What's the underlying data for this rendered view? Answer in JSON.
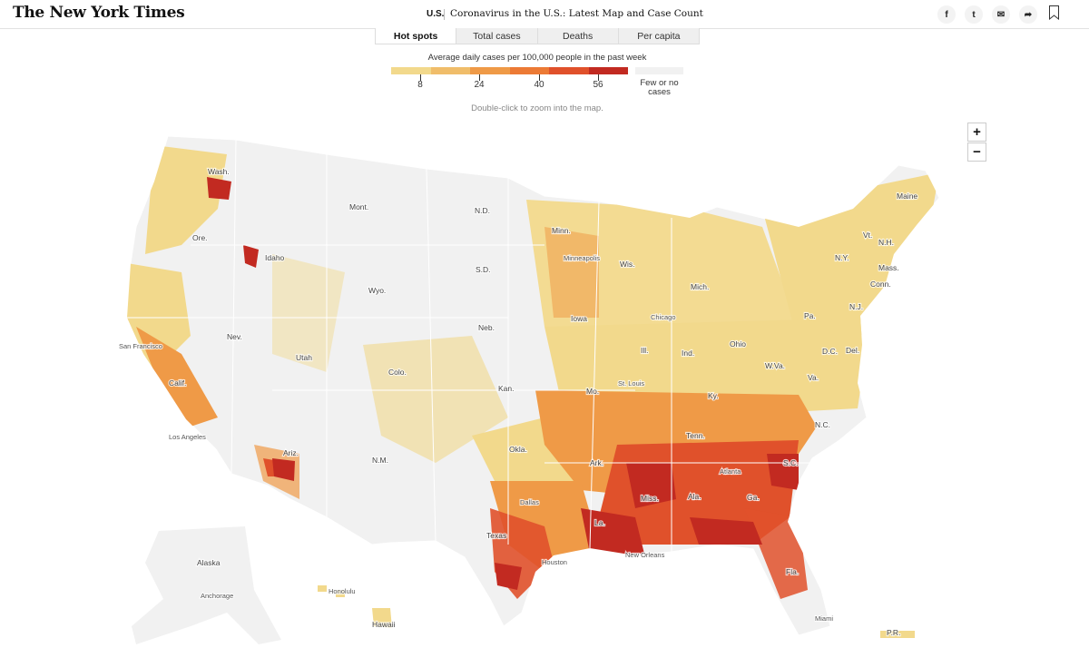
{
  "header": {
    "logo": "The New York Times",
    "section": "U.S.",
    "headline": "Coronavirus in the U.S.: Latest Map and Case Count",
    "share": [
      {
        "name": "facebook-icon",
        "glyph": "f"
      },
      {
        "name": "twitter-icon",
        "glyph": "t"
      },
      {
        "name": "email-icon",
        "glyph": "✉"
      },
      {
        "name": "share-icon",
        "glyph": "➦"
      }
    ]
  },
  "tabs": [
    "Hot spots",
    "Total cases",
    "Deaths",
    "Per capita"
  ],
  "legend": {
    "title": "Average daily cases per 100,000 people in the past week",
    "colors": [
      "#f2d98c",
      "#f0bd6a",
      "#ef9a47",
      "#ec7a35",
      "#e0512b",
      "#c22a21"
    ],
    "ticks": [
      "8",
      "24",
      "40",
      "56"
    ],
    "few_label": "Few or no cases",
    "few_color": "#f1f1f1"
  },
  "hint": "Double-click to zoom into the map.",
  "zoom": {
    "in": "+",
    "out": "−"
  },
  "map": {
    "colors": {
      "land": "#f1f1f1",
      "light": "#f2d98c",
      "mid": "#ef9a47",
      "high": "#e0512b",
      "severe": "#c22a21"
    },
    "labels": {
      "wash": "Wash.",
      "ore": "Ore.",
      "idaho": "Idaho",
      "mont": "Mont.",
      "wyo": "Wyo.",
      "nev": "Nev.",
      "utah": "Utah",
      "colo": "Colo.",
      "calif": "Calif.",
      "ariz": "Ariz.",
      "nm": "N.M.",
      "nd": "N.D.",
      "sd": "S.D.",
      "neb": "Neb.",
      "kan": "Kan.",
      "okla": "Okla.",
      "texas": "Texas",
      "minn": "Minn.",
      "iowa": "Iowa",
      "mo": "Mo.",
      "ark": "Ark.",
      "la": "La.",
      "wis": "Wis.",
      "ill": "Ill.",
      "mich": "Mich.",
      "ind": "Ind.",
      "ohio": "Ohio",
      "ky": "Ky.",
      "tenn": "Tenn.",
      "miss": "Miss.",
      "ala": "Ala.",
      "ga": "Ga.",
      "fla": "Fla.",
      "sc": "S.C.",
      "nc": "N.C.",
      "va": "Va.",
      "wva": "W.Va.",
      "pa": "Pa.",
      "ny": "N.Y.",
      "vt": "Vt.",
      "nh": "N.H.",
      "maine": "Maine",
      "mass": "Mass.",
      "conn": "Conn.",
      "nj": "N.J.",
      "dc": "D.C.",
      "del": "Del.",
      "alaska": "Alaska",
      "hawaii": "Hawaii",
      "pr": "P.R.",
      "sf": "San Francisco",
      "la_city": "Los Angeles",
      "minneapolis": "Minneapolis",
      "chicago": "Chicago",
      "stlouis": "St. Louis",
      "dallas": "Dallas",
      "houston": "Houston",
      "neworleans": "New Orleans",
      "atlanta": "Atlanta",
      "miami": "Miami",
      "anchorage": "Anchorage",
      "honolulu": "Honolulu"
    }
  }
}
